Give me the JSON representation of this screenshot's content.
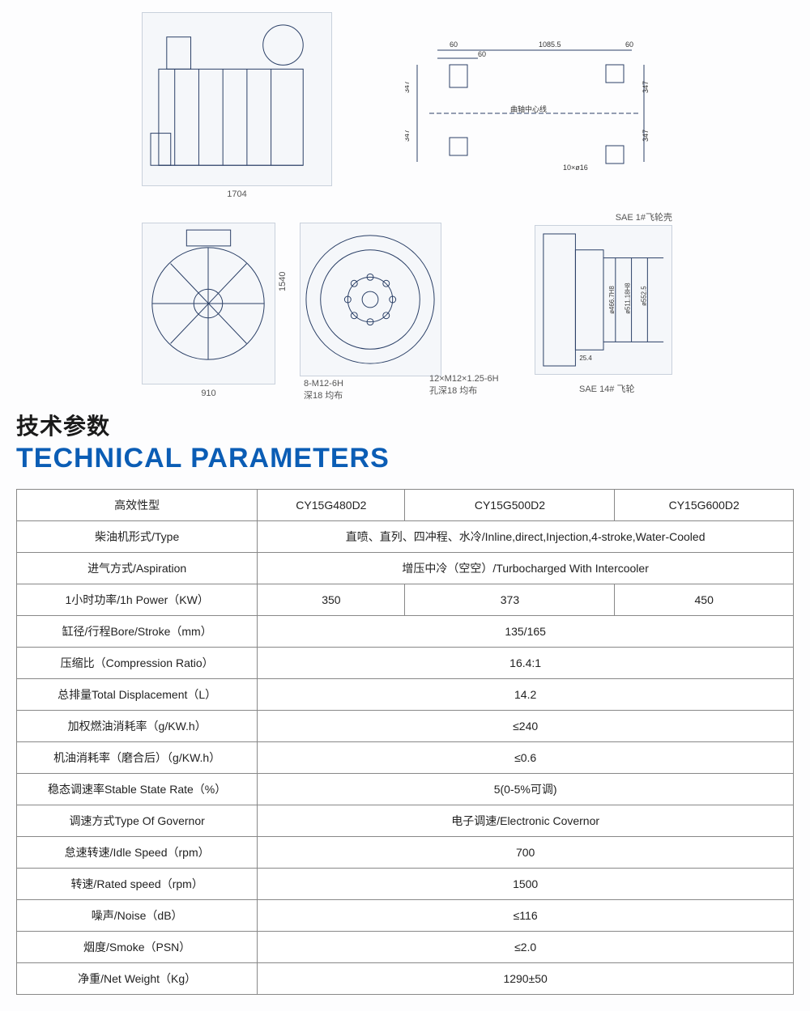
{
  "heading_cn": "技术参数",
  "heading_en": "TECHNICAL PARAMETERS",
  "colors": {
    "heading_en": "#0b5db5",
    "heading_cn": "#1a1a1a",
    "table_border": "#888888",
    "diagram_stroke": "#2a3f66"
  },
  "diagrams": {
    "side_view": {
      "caption": "1704"
    },
    "mounting_holes": {
      "dims": [
        "60",
        "60",
        "1085.5",
        "60",
        "347",
        "347",
        "347",
        "347"
      ],
      "note_center": "曲轴中心线",
      "note_bolt": "10×ø16"
    },
    "front_view": {
      "w": "910",
      "h": "1540"
    },
    "flywheel_housing": {
      "note1": "8-M12-6H",
      "note2": "深18 均布",
      "note3": "12×M12×1.25-6H",
      "note4": "孔深18 均布"
    },
    "flywheel_section": {
      "top_label": "SAE 1#飞轮壳",
      "bottom_label": "SAE 14# 飞轮",
      "d1": "ø466.7H8(+0.063/0)",
      "d2": "ø511.18H8(+0.110/0)",
      "d3": "ø552.5",
      "depth": "25.4"
    }
  },
  "table": {
    "header": [
      "高效性型",
      "CY15G480D2",
      "CY15G500D2",
      "CY15G600D2"
    ],
    "rows": [
      {
        "label": "柴油机形式/Type",
        "span": 3,
        "values": [
          "直喷、直列、四冲程、水冷/Inline,direct,Injection,4-stroke,Water-Cooled"
        ]
      },
      {
        "label": "进气方式/Aspiration",
        "span": 3,
        "values": [
          "增压中冷（空空）/Turbocharged With Intercooler"
        ]
      },
      {
        "label": "1小时功率/1h Power（KW）",
        "span": 1,
        "values": [
          "350",
          "373",
          "450"
        ]
      },
      {
        "label": "缸径/行程Bore/Stroke（mm）",
        "span": 3,
        "values": [
          "135/165"
        ]
      },
      {
        "label": "压缩比（Compression Ratio）",
        "span": 3,
        "values": [
          "16.4:1"
        ]
      },
      {
        "label": "总排量Total Displacement（L）",
        "span": 3,
        "values": [
          "14.2"
        ]
      },
      {
        "label": "加权燃油消耗率（g/KW.h）",
        "span": 3,
        "values": [
          "≤240"
        ]
      },
      {
        "label": "机油消耗率（磨合后）（g/KW.h）",
        "span": 3,
        "values": [
          "≤0.6"
        ]
      },
      {
        "label": "稳态调速率Stable State Rate（%）",
        "span": 3,
        "values": [
          "5(0-5%可调)"
        ]
      },
      {
        "label": "调速方式Type Of Governor",
        "span": 3,
        "values": [
          "电子调速/Electronic Covernor"
        ]
      },
      {
        "label": "怠速转速/Idle Speed（rpm）",
        "span": 3,
        "values": [
          "700"
        ]
      },
      {
        "label": "转速/Rated speed（rpm）",
        "span": 3,
        "values": [
          "1500"
        ]
      },
      {
        "label": "噪声/Noise（dB）",
        "span": 3,
        "values": [
          "≤116"
        ]
      },
      {
        "label": "烟度/Smoke（PSN）",
        "span": 3,
        "values": [
          "≤2.0"
        ]
      },
      {
        "label": "净重/Net Weight（Kg）",
        "span": 3,
        "values": [
          "1290±50"
        ]
      }
    ]
  }
}
